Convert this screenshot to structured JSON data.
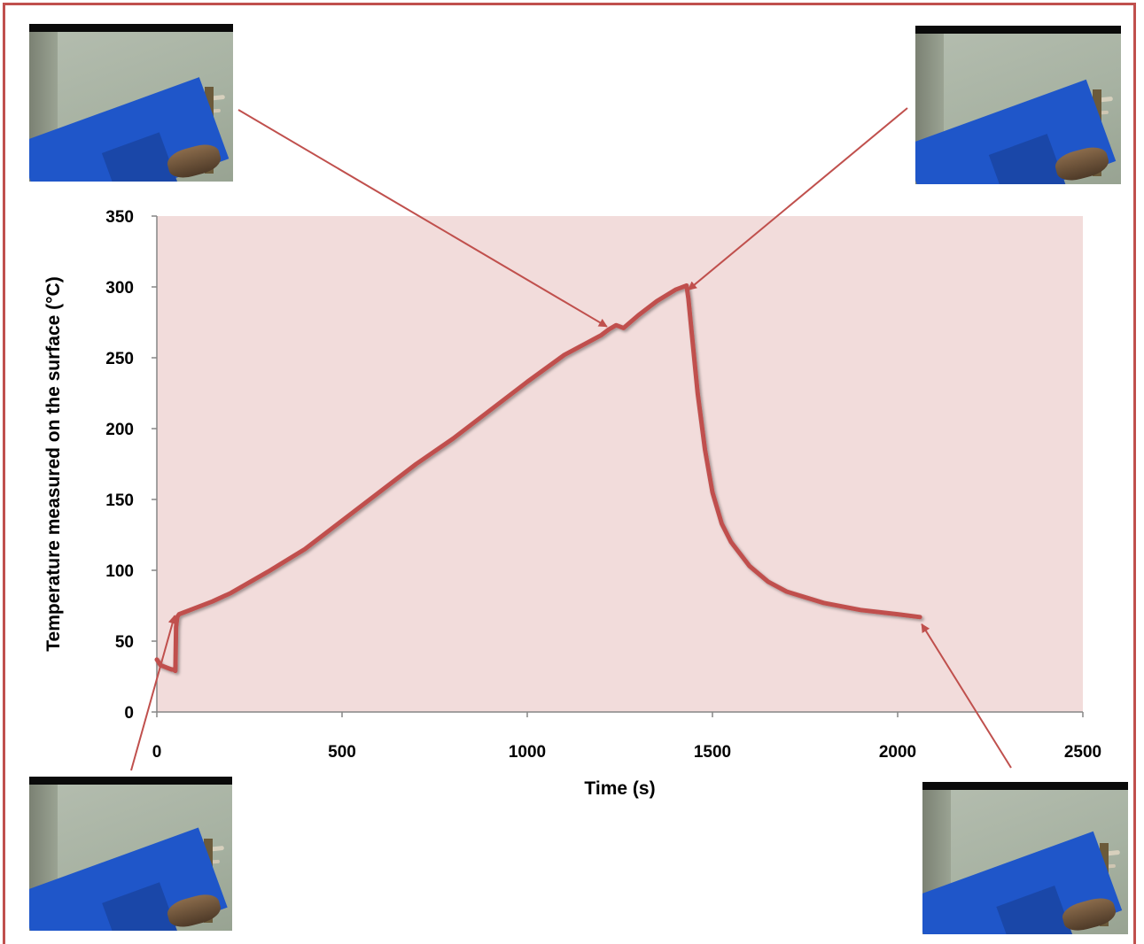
{
  "chart_data": {
    "type": "line",
    "title": "",
    "xlabel": "Time (s)",
    "ylabel": "Temperature measured on the surface (°C)",
    "xlim": [
      0,
      2500
    ],
    "ylim": [
      0,
      350
    ],
    "xticks": [
      "0",
      "500",
      "1000",
      "1500",
      "2000",
      "2500"
    ],
    "yticks": [
      "0",
      "50",
      "100",
      "150",
      "200",
      "250",
      "300",
      "350"
    ],
    "grid": false,
    "legend": "none",
    "plot_background": "#f2dcdb",
    "series": [
      {
        "color": "#c0504d",
        "x": [
          0,
          10,
          20,
          30,
          40,
          45,
          50,
          52,
          55,
          60,
          70,
          100,
          150,
          200,
          300,
          400,
          500,
          600,
          700,
          800,
          900,
          1000,
          1100,
          1200,
          1220,
          1240,
          1260,
          1300,
          1350,
          1400,
          1430,
          1435,
          1445,
          1460,
          1480,
          1500,
          1525,
          1550,
          1600,
          1650,
          1700,
          1800,
          1900,
          2000,
          2060
        ],
        "y": [
          37,
          33,
          32,
          31,
          30,
          30,
          29,
          60,
          67,
          69,
          70,
          73,
          78,
          84,
          99,
          115,
          135,
          155,
          175,
          193,
          213,
          233,
          252,
          266,
          270,
          273,
          271,
          280,
          290,
          298,
          301,
          292,
          265,
          225,
          185,
          155,
          133,
          120,
          103,
          92,
          85,
          77,
          72,
          69,
          67
        ]
      }
    ],
    "annotations": [
      {
        "type": "arrow",
        "target": [
          48,
          68
        ]
      },
      {
        "type": "arrow",
        "target": [
          1215,
          272
        ]
      },
      {
        "type": "arrow",
        "target": [
          1435,
          298
        ]
      },
      {
        "type": "arrow",
        "target": [
          2065,
          62
        ]
      }
    ]
  },
  "photos": [
    {
      "position": "top-left"
    },
    {
      "position": "top-right"
    },
    {
      "position": "bottom-left"
    },
    {
      "position": "bottom-right"
    }
  ]
}
